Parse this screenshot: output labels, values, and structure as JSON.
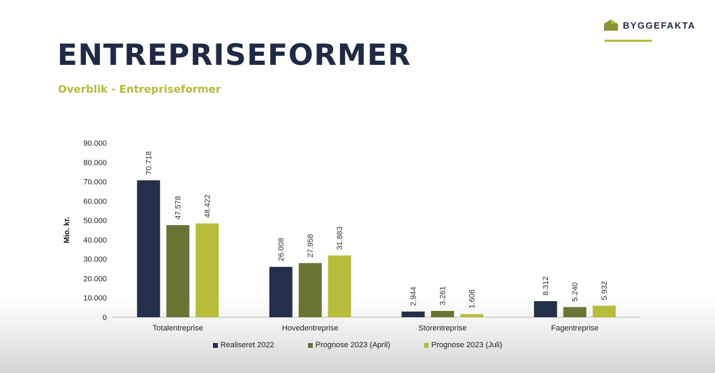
{
  "brand": {
    "name": "BYGGEFAKTA"
  },
  "title": "ENTREPRISEFORMER",
  "subtitle": "Overblik - Entrepriseformer",
  "chart_data": {
    "type": "bar",
    "ylabel": "Mio. kr.",
    "ylim": [
      0,
      90000
    ],
    "yticks": [
      0,
      10000,
      20000,
      30000,
      40000,
      50000,
      60000,
      70000,
      80000,
      90000
    ],
    "ytick_labels": [
      "0",
      "10.000",
      "20.000",
      "30.000",
      "40.000",
      "50.000",
      "60.000",
      "70.000",
      "80.000",
      "90.000"
    ],
    "categories": [
      "Totalentreprise",
      "Hovedentreprise",
      "Storentreprise",
      "Fagentreprise"
    ],
    "series": [
      {
        "name": "Realiseret 2022",
        "color": "#232f4b",
        "values": [
          70718,
          26008,
          2944,
          8312
        ],
        "labels": [
          "70.718",
          "26.008",
          "2.944",
          "8.312"
        ]
      },
      {
        "name": "Prognose 2023 (April)",
        "color": "#6b7432",
        "values": [
          47578,
          27958,
          3261,
          5240
        ],
        "labels": [
          "47.578",
          "27.958",
          "3.261",
          "5.240"
        ]
      },
      {
        "name": "Prognose 2023 (Juli)",
        "color": "#b5bd3b",
        "values": [
          48422,
          31883,
          1606,
          5932
        ],
        "labels": [
          "48.422",
          "31.883",
          "1.606",
          "5.932"
        ]
      }
    ],
    "legend_position": "bottom",
    "grid": false
  }
}
